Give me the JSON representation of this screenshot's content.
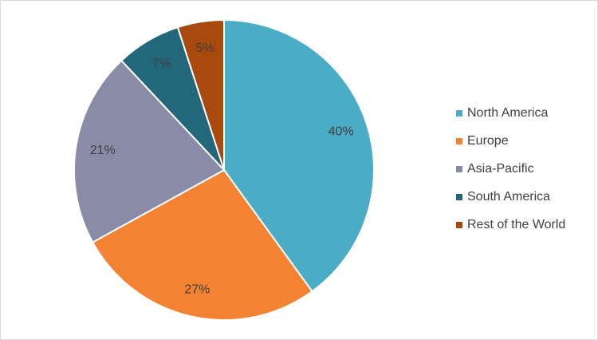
{
  "chart_data": {
    "type": "pie",
    "categories": [
      "North America",
      "Europe",
      "Asia-Pacific",
      "South America",
      "Rest of the World"
    ],
    "values": [
      40,
      27,
      21,
      7,
      5
    ],
    "value_labels": [
      "40%",
      "27%",
      "21%",
      "7%",
      "5%"
    ],
    "colors": [
      "#4bacc6",
      "#f38233",
      "#8a8ba6",
      "#23687a",
      "#a84a0e"
    ],
    "legend": "right"
  }
}
